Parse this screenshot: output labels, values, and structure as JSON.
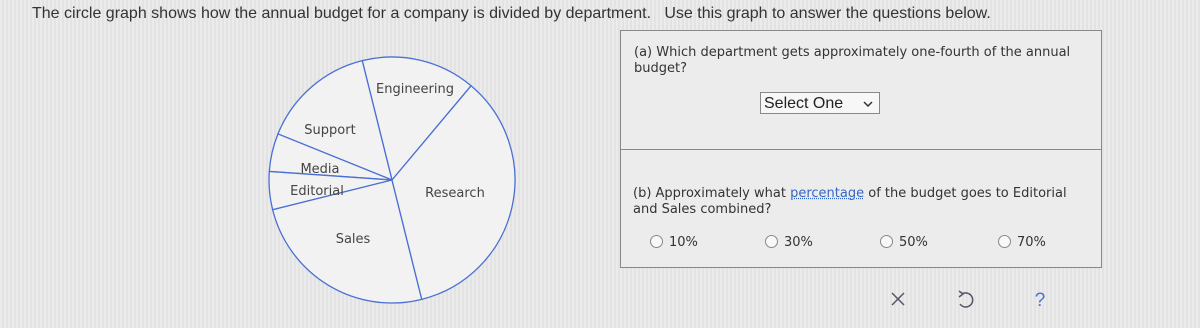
{
  "instructions": "The circle graph shows how the annual budget for a company is divided by department.",
  "instructions_2": "Use this graph to answer the questions below.",
  "chart_data": {
    "type": "pie",
    "categories": [
      "Engineering",
      "Support",
      "Media",
      "Editorial",
      "Sales",
      "Research"
    ],
    "values": [
      15,
      15,
      5,
      5,
      25,
      35
    ],
    "color": "#4a6fd4"
  },
  "question_a": {
    "prompt": "(a) Which department gets approximately one-fourth of the annual budget?",
    "select": "Select One"
  },
  "question_b": {
    "prompt_start": "(b) Approximately what",
    "link": "percentage",
    "prompt_end": "of the budget goes to Editorial and Sales combined?",
    "options": [
      "10%",
      "30%",
      "50%",
      "70%"
    ]
  },
  "help": "?"
}
